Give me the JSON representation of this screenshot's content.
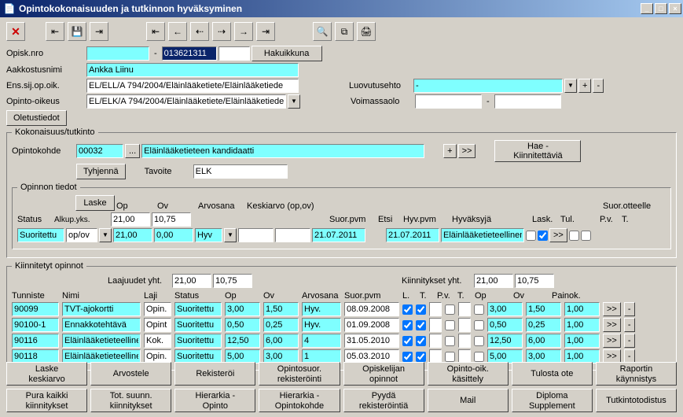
{
  "window": {
    "title": "Opintokokonaisuuden ja tutkinnon hyväksyminen"
  },
  "topfields": {
    "opisk_nro_label": "Opisk.nro",
    "opisk_nro_left": "",
    "opisk_nro_mid_label": "-",
    "opisk_nro_mid": "013621311",
    "opisk_nro_right": "",
    "hakuikkuna": "Hakuikkuna",
    "aakkostus_label": "Aakkostusnimi",
    "aakkostus": "Ankka Liinu",
    "ens_label": "Ens.sij.op.oik.",
    "ens": "EL/ELL/A 794/2004/Eläinlääketiete/Eläinlääketiede",
    "opinto_label": "Opinto-oikeus",
    "opinto": "EL/ELK/A 794/2004/Eläinlääketiete/Eläinlääketiede",
    "oletus": "Oletustiedot",
    "luovutus_label": "Luovutusehto",
    "luovutus": "-",
    "voimassa_label": "Voimassaolo",
    "voimassa_sep": "-",
    "plus": "+",
    "minus": "-"
  },
  "kokonaisuus": {
    "legend": "Kokonaisuus/tutkinto",
    "opintokohde_label": "Opintokohde",
    "code": "00032",
    "dots": "...",
    "name": "Eläinlääketieteen kandidaatti",
    "plus": "+",
    "gg": ">>",
    "tyhjenna": "Tyhjennä",
    "tavoite_label": "Tavoite",
    "tavoite": "ELK",
    "hae": "Hae - Kiinnitettäviä"
  },
  "opinnon": {
    "legend": "Opinnon tiedot",
    "status_label": "Status",
    "laske": "Laske",
    "op_label": "Op",
    "ov_label": "Ov",
    "arvosana_label": "Arvosana",
    "keskiarvo_label": "Keskiarvo (op,ov)",
    "status": "Suoritettu",
    "opov": "op/ov",
    "op": "21,00",
    "ov": "10,75",
    "op2": "21,00",
    "ov2": "0,00",
    "hyv": "Hyv",
    "suorpvm_label": "Suor.pvm",
    "suorpvm": "21.07.2011",
    "etsi": "Etsi",
    "hyvpvm_label": "Hyv.pvm",
    "hyvpvm": "21.07.2011",
    "hyvaksyja_label": "Hyväksyjä",
    "hyvaksyja": "Eläinlääketieteellinen",
    "otteelle": "Suor.otteelle",
    "lask": "Lask.",
    "tul": "Tul.",
    "pv": "P.v.",
    "t": "T.",
    "gg": ">>",
    "alkup": "Alkup.yks."
  },
  "kiin": {
    "legend": "Kiinnitetyt opinnot",
    "laajuudet": "Laajuudet yht.",
    "laaj_op": "21,00",
    "laaj_ov": "10,75",
    "kiinnitykset": "Kiinnitykset yht.",
    "kiin_op": "21,00",
    "kiin_ov": "10,75",
    "hdr": {
      "tunniste": "Tunniste",
      "nimi": "Nimi",
      "laji": "Laji",
      "status": "Status",
      "op": "Op",
      "ov": "Ov",
      "arvosana": "Arvosana",
      "suorpvm": "Suor.pvm",
      "l": "L.",
      "t1": "T.",
      "pv": "P.v.",
      "t2": "T.",
      "op2": "Op",
      "ov2": "Ov",
      "painok": "Painok."
    },
    "rows": [
      {
        "tunniste": "90099",
        "nimi": "TVT-ajokortti",
        "laji": "Opin.",
        "status": "Suoritettu",
        "op": "3,00",
        "ov": "1,50",
        "arv": "Hyv.",
        "pvm": "08.09.2008",
        "l": true,
        "t1": true,
        "pv": false,
        "t2": false,
        "op2": "3,00",
        "ov2": "1,50",
        "pk": "1,00"
      },
      {
        "tunniste": "90100-1",
        "nimi": "Ennakkotehtävä",
        "laji": "Opint",
        "status": "Suoritettu",
        "op": "0,50",
        "ov": "0,25",
        "arv": "Hyv.",
        "pvm": "01.09.2008",
        "l": true,
        "t1": true,
        "pv": false,
        "t2": false,
        "op2": "0,50",
        "ov2": "0,25",
        "pk": "1,00"
      },
      {
        "tunniste": "90116",
        "nimi": "Eläinlääketieteellinen",
        "laji": "Kok.",
        "status": "Suoritettu",
        "op": "12,50",
        "ov": "6,00",
        "arv": "4",
        "pvm": "31.05.2010",
        "l": true,
        "t1": true,
        "pv": false,
        "t2": false,
        "op2": "12,50",
        "ov2": "6,00",
        "pk": "1,00"
      },
      {
        "tunniste": "90118",
        "nimi": "Eläinlääketieteellinen",
        "laji": "Opin.",
        "status": "Suoritettu",
        "op": "5,00",
        "ov": "3,00",
        "arv": "1",
        "pvm": "05.03.2010",
        "l": true,
        "t1": true,
        "pv": false,
        "t2": false,
        "op2": "5,00",
        "ov2": "3,00",
        "pk": "1,00"
      }
    ],
    "gg": ">>",
    "minus": "-"
  },
  "footer": {
    "r1": [
      "Laske\nkeskiarvo",
      "Arvostele",
      "Rekisteröi",
      "Opintosuor.\nrekisteröinti",
      "Opiskelijan\nopinnot",
      "Opinto-oik.\nkäsittely",
      "Tulosta ote",
      "Raportin\nkäynnistys"
    ],
    "r2": [
      "Pura kaikki\nkiinnitykset",
      "Tot. suunn.\nkiinnitykset",
      "Hierarkia -\nOpinto",
      "Hierarkia -\nOpintokohde",
      "Pyydä\nrekisteröintiä",
      "Mail",
      "Diploma\nSupplement",
      "Tutkintotodistus"
    ]
  }
}
